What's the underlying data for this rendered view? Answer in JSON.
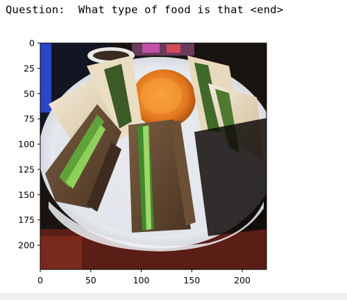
{
  "question_text": "Question:  What type of food is that <end>",
  "chart_data": {
    "type": "image",
    "description": "matplotlib imshow of a photo (224x224 px)",
    "xlim": [
      0,
      224
    ],
    "ylim": [
      224,
      0
    ],
    "x_ticks": [
      0,
      50,
      100,
      150,
      200
    ],
    "y_ticks": [
      0,
      25,
      50,
      75,
      100,
      125,
      150,
      175,
      200
    ],
    "grid": false
  },
  "colors": {
    "axis": "#000000",
    "background": "#ffffff"
  }
}
